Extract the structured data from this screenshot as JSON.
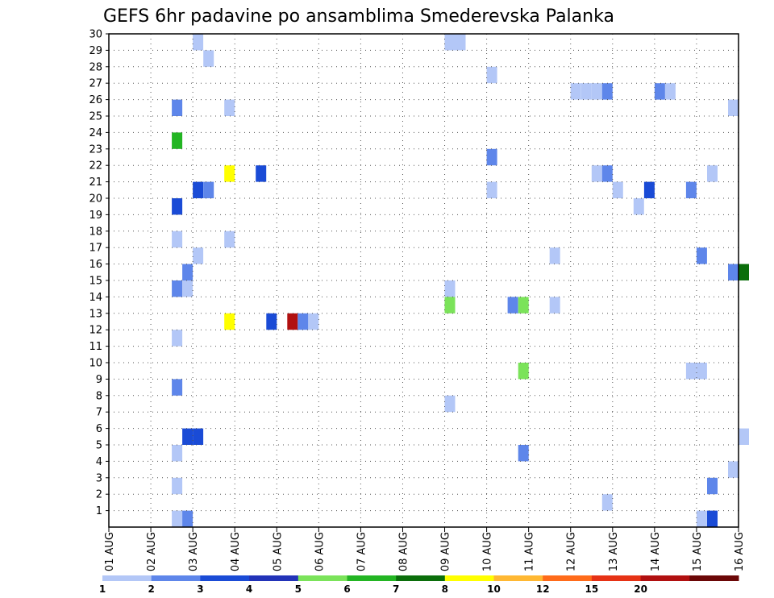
{
  "chart_data": {
    "type": "heatmap",
    "title": "GEFS 6hr padavine po ansamblima Smederevska Palanka",
    "x_ticks": [
      "01 AUG",
      "02 AUG",
      "03 AUG",
      "04 AUG",
      "05 AUG",
      "06 AUG",
      "07 AUG",
      "08 AUG",
      "09 AUG",
      "10 AUG",
      "11 AUG",
      "12 AUG",
      "13 AUG",
      "14 AUG",
      "15 AUG",
      "16 AUG"
    ],
    "y_ticks": [
      1,
      2,
      3,
      4,
      5,
      6,
      7,
      8,
      9,
      10,
      11,
      12,
      13,
      14,
      15,
      16,
      17,
      18,
      19,
      20,
      21,
      22,
      23,
      24,
      25,
      26,
      27,
      28,
      29,
      30
    ],
    "y_range": [
      0,
      30
    ],
    "x_range": [
      "01 AUG",
      "16 AUG"
    ],
    "grid": true,
    "colorbar": {
      "levels": [
        "1",
        "2",
        "3",
        "4",
        "5",
        "6",
        "7",
        "8",
        "10",
        "12",
        "15",
        "20"
      ],
      "colors": [
        "#b3c7f7",
        "#5e86ea",
        "#1a4bd6",
        "#2233b8",
        "#7be35a",
        "#23b523",
        "#0b6e0b",
        "#ffff00",
        "#ffb833",
        "#ff6b1a",
        "#e63215",
        "#b11010",
        "#6b0707"
      ]
    },
    "cells_note_units": "x in days from 01 AUG, y = ensemble member, v = precipitation color class index",
    "cells": [
      {
        "x": 2.0,
        "y": 30,
        "v": 0
      },
      {
        "x": 2.25,
        "y": 29,
        "v": 0
      },
      {
        "x": 8.0,
        "y": 30,
        "v": 0
      },
      {
        "x": 8.25,
        "y": 30,
        "v": 0
      },
      {
        "x": 9.0,
        "y": 28,
        "v": 0
      },
      {
        "x": 11.0,
        "y": 27,
        "v": 0
      },
      {
        "x": 11.25,
        "y": 27,
        "v": 0
      },
      {
        "x": 11.5,
        "y": 27,
        "v": 0
      },
      {
        "x": 11.75,
        "y": 27,
        "v": 1
      },
      {
        "x": 13.0,
        "y": 27,
        "v": 1
      },
      {
        "x": 13.25,
        "y": 27,
        "v": 0
      },
      {
        "x": 1.5,
        "y": 26,
        "v": 1
      },
      {
        "x": 2.75,
        "y": 26,
        "v": 0
      },
      {
        "x": 14.75,
        "y": 26,
        "v": 0
      },
      {
        "x": 1.5,
        "y": 24,
        "v": 5
      },
      {
        "x": 9.0,
        "y": 23,
        "v": 1
      },
      {
        "x": 2.75,
        "y": 22,
        "v": 7
      },
      {
        "x": 3.5,
        "y": 22,
        "v": 2
      },
      {
        "x": 11.5,
        "y": 22,
        "v": 0
      },
      {
        "x": 11.75,
        "y": 22,
        "v": 1
      },
      {
        "x": 14.25,
        "y": 22,
        "v": 0
      },
      {
        "x": 2.0,
        "y": 21,
        "v": 2
      },
      {
        "x": 2.25,
        "y": 21,
        "v": 1
      },
      {
        "x": 9.0,
        "y": 21,
        "v": 0
      },
      {
        "x": 12.0,
        "y": 21,
        "v": 0
      },
      {
        "x": 12.75,
        "y": 21,
        "v": 2
      },
      {
        "x": 13.75,
        "y": 21,
        "v": 1
      },
      {
        "x": 1.5,
        "y": 20,
        "v": 2
      },
      {
        "x": 12.5,
        "y": 20,
        "v": 0
      },
      {
        "x": 1.5,
        "y": 18,
        "v": 0
      },
      {
        "x": 2.75,
        "y": 18,
        "v": 0
      },
      {
        "x": 2.0,
        "y": 17,
        "v": 0
      },
      {
        "x": 10.5,
        "y": 17,
        "v": 0
      },
      {
        "x": 14.0,
        "y": 17,
        "v": 1
      },
      {
        "x": 1.75,
        "y": 16,
        "v": 1
      },
      {
        "x": 14.75,
        "y": 16,
        "v": 1
      },
      {
        "x": 15.0,
        "y": 16,
        "v": 6
      },
      {
        "x": 1.5,
        "y": 15,
        "v": 1
      },
      {
        "x": 1.75,
        "y": 15,
        "v": 0
      },
      {
        "x": 8.0,
        "y": 15,
        "v": 0
      },
      {
        "x": 8.0,
        "y": 14,
        "v": 4
      },
      {
        "x": 9.5,
        "y": 14,
        "v": 1
      },
      {
        "x": 9.75,
        "y": 14,
        "v": 4
      },
      {
        "x": 10.5,
        "y": 14,
        "v": 0
      },
      {
        "x": 2.75,
        "y": 13,
        "v": 7
      },
      {
        "x": 3.75,
        "y": 13,
        "v": 2
      },
      {
        "x": 4.25,
        "y": 13,
        "v": 11
      },
      {
        "x": 4.5,
        "y": 13,
        "v": 1
      },
      {
        "x": 4.75,
        "y": 13,
        "v": 0
      },
      {
        "x": 1.5,
        "y": 12,
        "v": 0
      },
      {
        "x": 9.75,
        "y": 10,
        "v": 4
      },
      {
        "x": 13.75,
        "y": 10,
        "v": 0
      },
      {
        "x": 14.0,
        "y": 10,
        "v": 0
      },
      {
        "x": 1.5,
        "y": 9,
        "v": 1
      },
      {
        "x": 8.0,
        "y": 8,
        "v": 0
      },
      {
        "x": 1.75,
        "y": 6,
        "v": 2
      },
      {
        "x": 2.0,
        "y": 6,
        "v": 2
      },
      {
        "x": 15.0,
        "y": 6,
        "v": 0
      },
      {
        "x": 1.5,
        "y": 5,
        "v": 0
      },
      {
        "x": 9.75,
        "y": 5,
        "v": 1
      },
      {
        "x": 14.75,
        "y": 4,
        "v": 0
      },
      {
        "x": 1.5,
        "y": 3,
        "v": 0
      },
      {
        "x": 14.25,
        "y": 3,
        "v": 1
      },
      {
        "x": 11.75,
        "y": 2,
        "v": 0
      },
      {
        "x": 1.5,
        "y": 1,
        "v": 0
      },
      {
        "x": 1.75,
        "y": 1,
        "v": 1
      },
      {
        "x": 14.0,
        "y": 1,
        "v": 0
      },
      {
        "x": 14.25,
        "y": 1,
        "v": 2
      }
    ]
  }
}
